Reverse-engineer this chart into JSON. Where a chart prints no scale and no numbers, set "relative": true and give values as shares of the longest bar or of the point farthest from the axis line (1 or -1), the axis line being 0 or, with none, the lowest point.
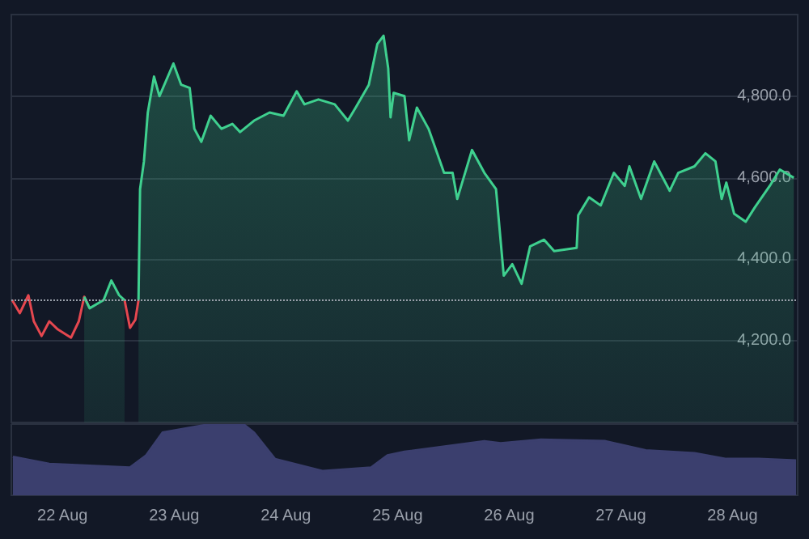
{
  "chart_data": [
    {
      "type": "area",
      "x": [
        "--08-21T13:10",
        "--08-21T14:50",
        "--08-21T16:40",
        "--08-21T17:50",
        "--08-21T19:30",
        "--08-21T21:10",
        "--08-21T23:00",
        "--08-22T01:50",
        "--08-22T03:30",
        "--08-22T04:40",
        "--08-22T05:50",
        "--08-22T08:50",
        "--08-22T10:30",
        "--08-22T12:10",
        "--08-22T13:20",
        "--08-22T14:30",
        "--08-22T15:40",
        "--08-22T16:20",
        "--08-22T16:40",
        "--08-22T17:30",
        "--08-22T18:20",
        "--08-22T19:40",
        "--08-22T20:50",
        "--08-22T23:50",
        "--08-23T01:30",
        "--08-23T03:20",
        "--08-23T04:20",
        "--08-23T05:50",
        "--08-23T07:50",
        "--08-23T10:10",
        "--08-23T12:30",
        "--08-23T14:10",
        "--08-23T17:10",
        "--08-23T20:30",
        "--08-23T23:30",
        "--08-24T02:20",
        "--08-24T04:00",
        "--08-24T07:00",
        "--08-24T10:30",
        "--08-24T13:20",
        "--08-24T15:00",
        "--08-24T17:50",
        "--08-24T19:40",
        "--08-24T21:00",
        "--08-24T22:00",
        "--08-24T22:30",
        "--08-24T23:10",
        "--08-25T01:30",
        "--08-25T02:30",
        "--08-25T04:10",
        "--08-25T06:40",
        "--08-25T10:00",
        "--08-25T11:50",
        "--08-25T12:50",
        "--08-25T16:00",
        "--08-25T18:40",
        "--08-25T21:10",
        "--08-25T22:50",
        "--08-26T00:40",
        "--08-26T02:40",
        "--08-26T04:30",
        "--08-26T07:30",
        "--08-26T09:40",
        "--08-26T14:30",
        "--08-26T14:50",
        "--08-26T17:10",
        "--08-26T19:40",
        "--08-26T22:30",
        "--08-27T00:50",
        "--08-27T01:50",
        "--08-27T04:20",
        "--08-27T07:10",
        "--08-27T10:30",
        "--08-27T12:20",
        "--08-27T15:50",
        "--08-27T18:10",
        "--08-27T20:20",
        "--08-27T21:40",
        "--08-27T22:40",
        "--08-28T00:20",
        "--08-28T02:50",
        "--08-28T04:50",
        "--08-28T08:00",
        "--08-28T10:10",
        "--08-28T13:10"
      ],
      "series": [
        {
          "type": "line",
          "color": "#e5474f",
          "values": [
            4300,
            4268,
            4312,
            4248,
            4212,
            4248,
            4228,
            4208,
            4248,
            4308,
            4280,
            null,
            null,
            null,
            4300,
            4232,
            4252,
            4300,
            null,
            null,
            null,
            null,
            null,
            null,
            null,
            null,
            null,
            null,
            null,
            null,
            null,
            null,
            null,
            null,
            null,
            null,
            null,
            null,
            null,
            null,
            null,
            null,
            null,
            null,
            null,
            null,
            null,
            null,
            null,
            null,
            null,
            null,
            null,
            null,
            null,
            null,
            null,
            null,
            null,
            null,
            null,
            null,
            null,
            null,
            null,
            null,
            null,
            null,
            null,
            null,
            null,
            null,
            null,
            null,
            null,
            null,
            null,
            null,
            null,
            null,
            null,
            null,
            null,
            null,
            null
          ]
        },
        {
          "color": "#3fd08f",
          "values": [
            null,
            null,
            null,
            null,
            null,
            null,
            null,
            null,
            null,
            4308,
            4280,
            4300,
            4348,
            4312,
            4300,
            null,
            null,
            4300,
            4572,
            4640,
            4760,
            4848,
            4800,
            4880,
            4828,
            4820,
            4720,
            4688,
            4752,
            4720,
            4732,
            4712,
            4740,
            4760,
            4752,
            4812,
            4780,
            4792,
            4780,
            4740,
            4772,
            4828,
            4928,
            4948,
            4868,
            4748,
            4808,
            4800,
            4692,
            4772,
            4720,
            4612,
            4612,
            4548,
            4668,
            4612,
            4572,
            4360,
            4388,
            4340,
            4432,
            4448,
            4420,
            4428,
            4508,
            4552,
            4532,
            4612,
            4580,
            4628,
            4548,
            4640,
            4568,
            4612,
            4628,
            4660,
            4640,
            4548,
            4588,
            4512,
            4492,
            4528,
            4580,
            4620,
            4600
          ]
        }
      ],
      "xlim": [
        "--08-21T13:00",
        "--08-28T14:00"
      ],
      "ylim": [
        4000,
        5000
      ],
      "yticks": [
        {
          "value": 4000,
          "label": null
        },
        {
          "value": 4200,
          "label": "4,200.0"
        },
        {
          "value": 4400,
          "label": "4,400.0"
        },
        {
          "value": 4600,
          "label": "4,600.0"
        },
        {
          "value": 4800,
          "label": "4,800.0"
        }
      ],
      "ref_lines": [
        {
          "axis": "y",
          "value": 4300,
          "line_style": "dotted",
          "color": "#9aa0aa"
        }
      ],
      "grid": "y",
      "tick_labels": "y",
      "marker": "none"
    },
    {
      "type": "area",
      "relative": true,
      "x": [
        "--08-21T13:20",
        "--08-21T21:10",
        "--08-22T14:30",
        "--08-22T18:00",
        "--08-22T21:30",
        "--08-23T07:50",
        "--08-23T14:50",
        "--08-23T17:10",
        "--08-23T21:40",
        "--08-24T08:00",
        "--08-24T18:20",
        "--08-24T21:50",
        "--08-25T01:30",
        "--08-25T18:40",
        "--08-25T22:10",
        "--08-26T06:50",
        "--08-26T20:40",
        "--08-27T05:20",
        "--08-27T15:50",
        "--08-27T22:40",
        "--08-28T05:40",
        "--08-28T13:40"
      ],
      "series": [
        {
          "color": "#3b3f6e",
          "values": [
            0.54,
            0.44,
            0.39,
            0.56,
            0.88,
            1,
            1,
            0.88,
            0.51,
            0.34,
            0.39,
            0.56,
            0.61,
            0.76,
            0.73,
            0.78,
            0.76,
            0.63,
            0.59,
            0.51,
            0.51,
            0.49
          ]
        }
      ],
      "xlim": [
        "--08-21T13:00",
        "--08-28T14:00"
      ],
      "xticks": [
        {
          "value": "--08-22",
          "label": "22 Aug"
        },
        {
          "value": "--08-23",
          "label": "23 Aug"
        },
        {
          "value": "--08-24",
          "label": "24 Aug"
        },
        {
          "value": "--08-25",
          "label": "25 Aug"
        },
        {
          "value": "--08-26",
          "label": "26 Aug"
        },
        {
          "value": "--08-27",
          "label": "27 Aug"
        },
        {
          "value": "--08-28",
          "label": "28 Aug"
        }
      ],
      "tick_labels": "x",
      "marker": "none"
    }
  ]
}
